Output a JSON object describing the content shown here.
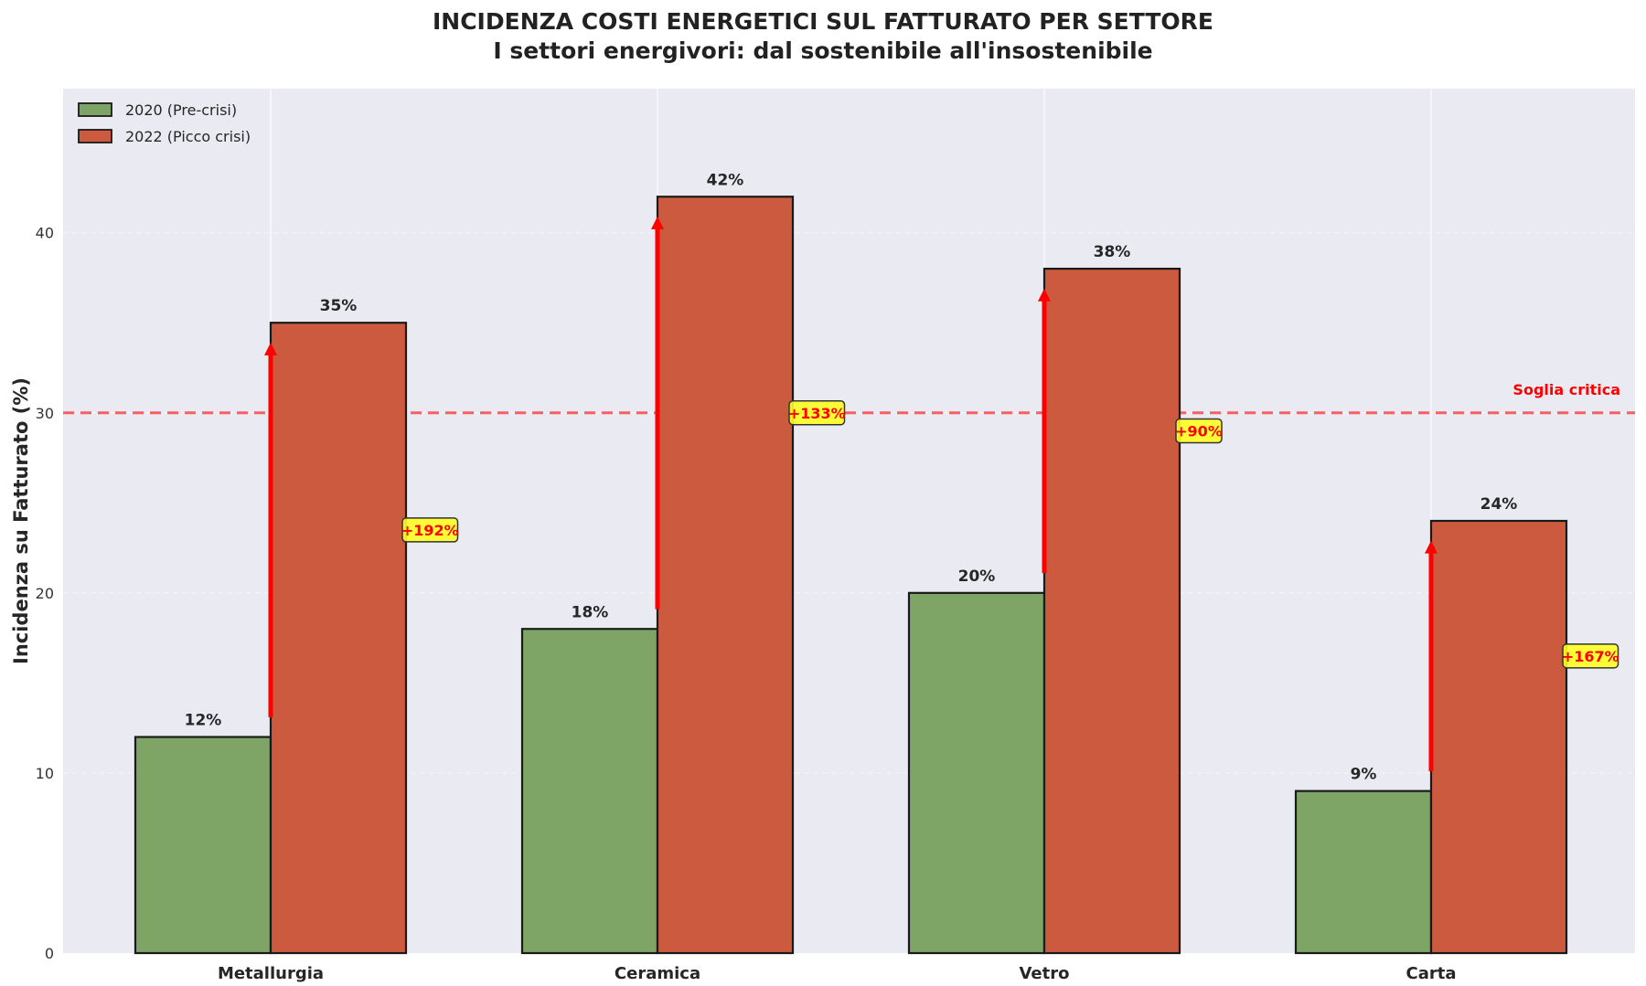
{
  "chart_data": {
    "type": "bar",
    "title": "INCIDENZA COSTI ENERGETICI SUL FATTURATO PER SETTORE",
    "subtitle": "I settori energivori: dal sostenibile all'insostenibile",
    "xlabel": "",
    "ylabel": "Incidenza su Fatturato (%)",
    "ylim": [
      0,
      48
    ],
    "yticks": [
      0,
      10,
      20,
      30,
      40
    ],
    "grid": true,
    "legend_position": "upper left",
    "categories": [
      "Metallurgia",
      "Ceramica",
      "Vetro",
      "Carta"
    ],
    "series": [
      {
        "name": "2020 (Pre-crisi)",
        "values": [
          12,
          18,
          20,
          9
        ],
        "color": "#7ea566",
        "labels": [
          "12%",
          "18%",
          "20%",
          "9%"
        ]
      },
      {
        "name": "2022 (Picco crisi)",
        "values": [
          35,
          42,
          38,
          24
        ],
        "color": "#cc5a3e",
        "labels": [
          "35%",
          "42%",
          "38%",
          "24%"
        ]
      }
    ],
    "annotations": {
      "increase_labels": [
        "+192%",
        "+133%",
        "+90%",
        "+167%"
      ],
      "threshold": {
        "value": 30,
        "label": "Soglia critica",
        "color": "#ff0000"
      }
    }
  }
}
